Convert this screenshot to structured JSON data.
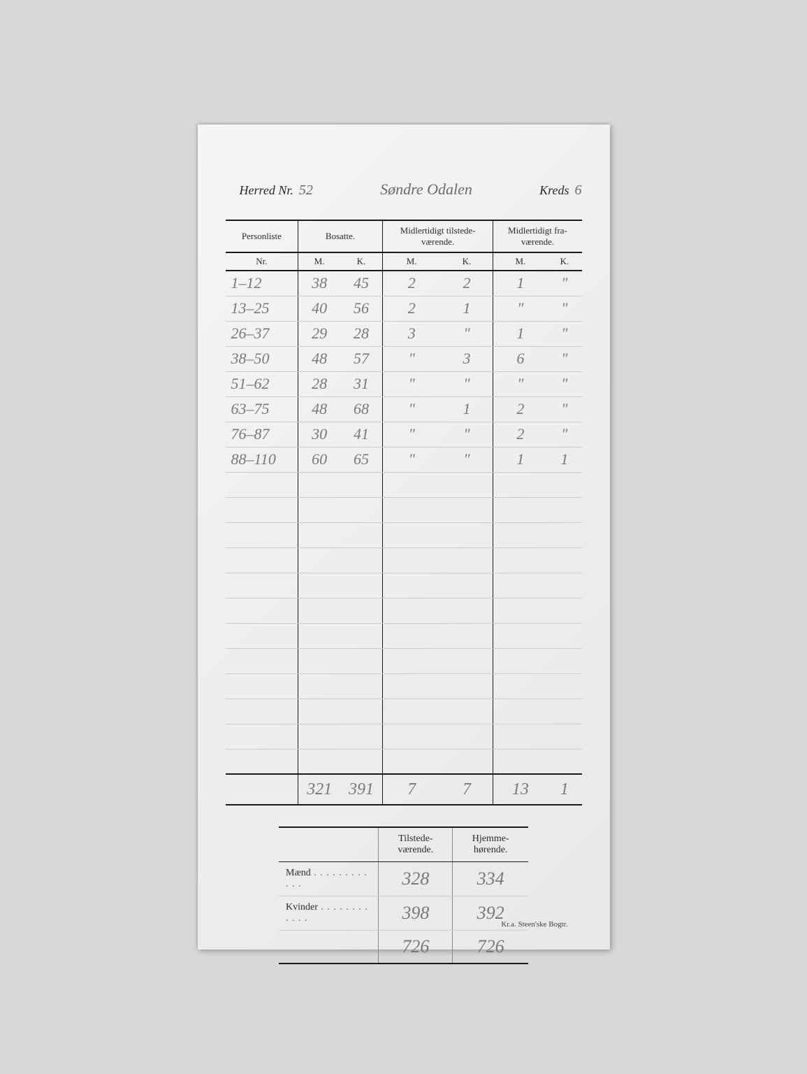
{
  "header": {
    "herred_label": "Herred Nr.",
    "herred_nr": "52",
    "herred_name": "Søndre Odalen",
    "kreds_label": "Kreds",
    "kreds_nr": "6"
  },
  "main_table": {
    "col_personliste": "Personliste",
    "col_nr": "Nr.",
    "col_bosatte": "Bosatte.",
    "col_midl_tilstede": "Midlertidigt tilstede-\nværende.",
    "col_midl_fra": "Midlertidigt fra-\nværende.",
    "col_m": "M.",
    "col_k": "K.",
    "rows": [
      {
        "nr": "1–12",
        "bm": "38",
        "bk": "45",
        "tm": "2",
        "tk": "2",
        "fm": "1",
        "fk": "\""
      },
      {
        "nr": "13–25",
        "bm": "40",
        "bk": "56",
        "tm": "2",
        "tk": "1",
        "fm": "\"",
        "fk": "\""
      },
      {
        "nr": "26–37",
        "bm": "29",
        "bk": "28",
        "tm": "3",
        "tk": "\"",
        "fm": "1",
        "fk": "\""
      },
      {
        "nr": "38–50",
        "bm": "48",
        "bk": "57",
        "tm": "\"",
        "tk": "3",
        "fm": "6",
        "fk": "\""
      },
      {
        "nr": "51–62",
        "bm": "28",
        "bk": "31",
        "tm": "\"",
        "tk": "\"",
        "fm": "\"",
        "fk": "\""
      },
      {
        "nr": "63–75",
        "bm": "48",
        "bk": "68",
        "tm": "\"",
        "tk": "1",
        "fm": "2",
        "fk": "\""
      },
      {
        "nr": "76–87",
        "bm": "30",
        "bk": "41",
        "tm": "\"",
        "tk": "\"",
        "fm": "2",
        "fk": "\""
      },
      {
        "nr": "88–110",
        "bm": "60",
        "bk": "65",
        "tm": "\"",
        "tk": "\"",
        "fm": "1",
        "fk": "1"
      }
    ],
    "empty_rows": 12,
    "totals": {
      "nr": "",
      "bm": "321",
      "bk": "391",
      "tm": "7",
      "tk": "7",
      "fm": "13",
      "fk": "1"
    }
  },
  "summary": {
    "col_tilstede": "Tilstede-\nværende.",
    "col_hjemme": "Hjemme-\nhørende.",
    "row_maend": "Mænd",
    "row_kvinder": "Kvinder",
    "maend": {
      "t": "328",
      "h": "334"
    },
    "kvinder": {
      "t": "398",
      "h": "392"
    },
    "total": {
      "t": "726",
      "h": "726"
    }
  },
  "footer": "Kr.a.  Steen'ske Bogtr."
}
